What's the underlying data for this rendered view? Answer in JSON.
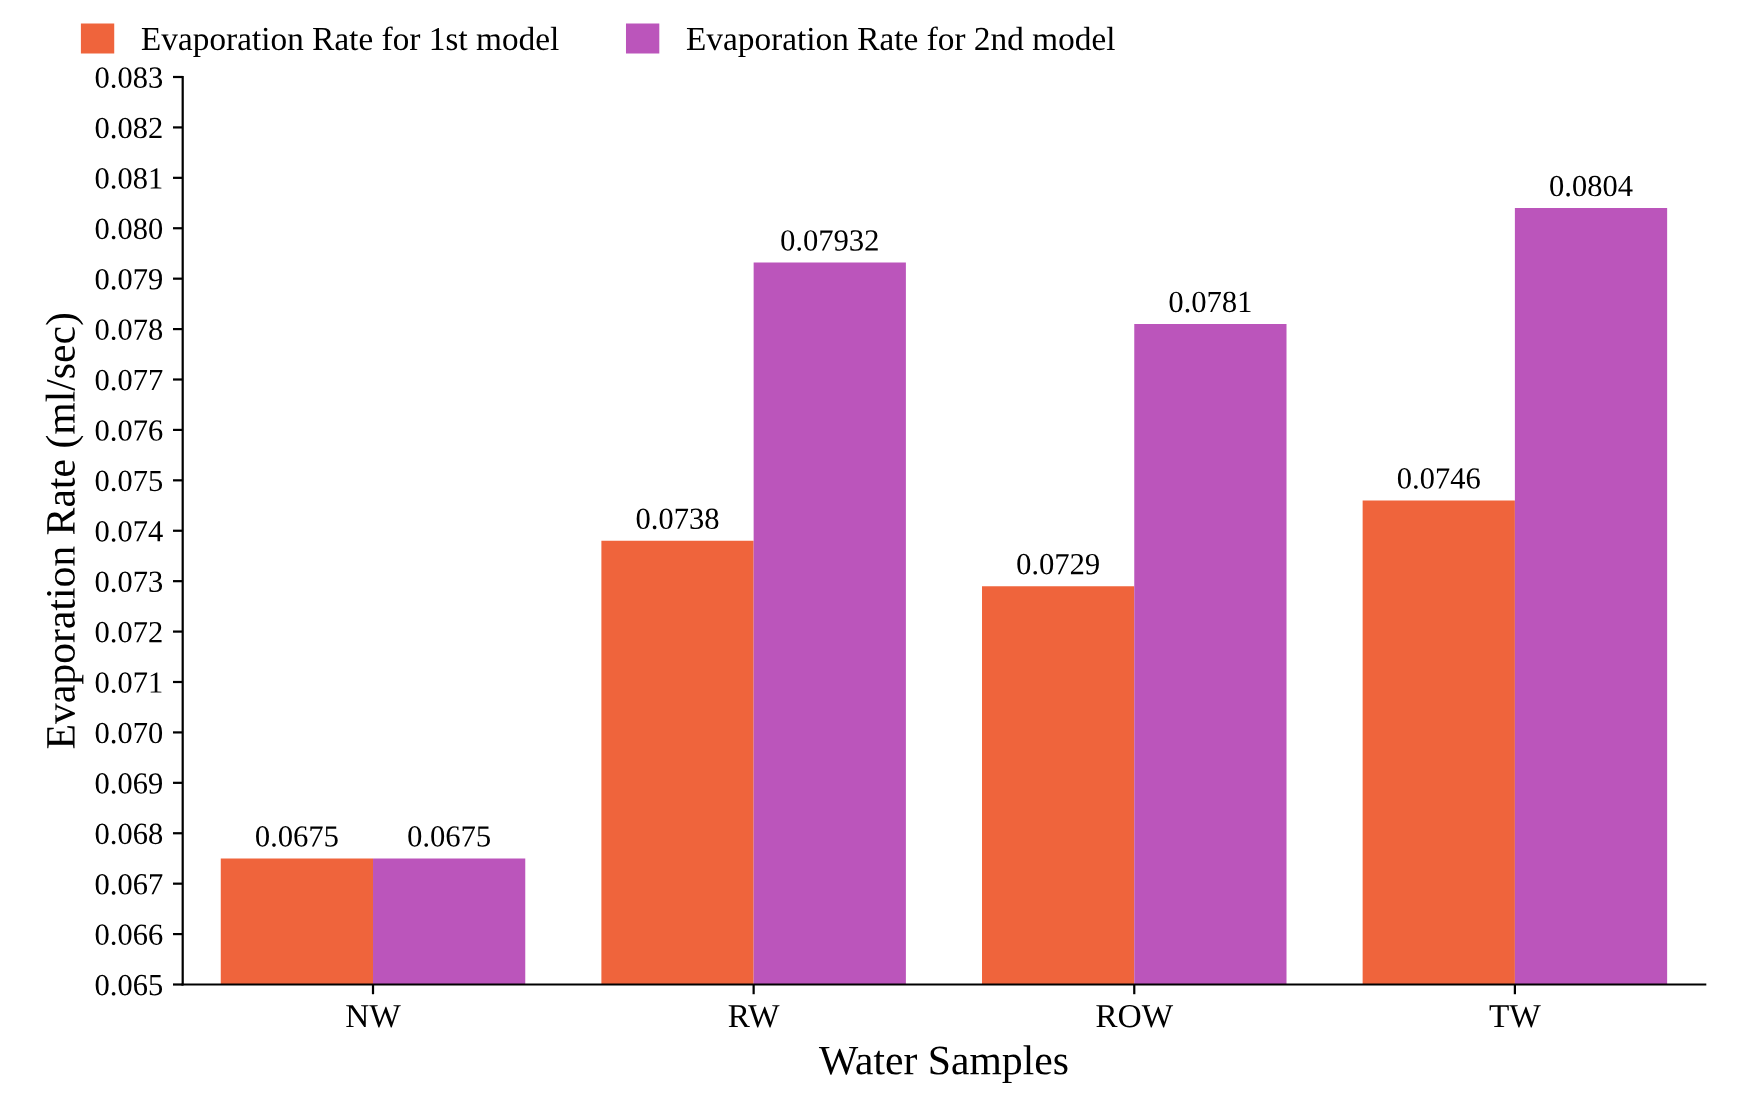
{
  "chart_data": {
    "type": "bar",
    "xlabel": "Water Samples",
    "ylabel": "Evaporation Rate (ml/sec)",
    "categories": [
      "NW",
      "RW",
      "ROW",
      "TW"
    ],
    "series": [
      {
        "name": "Evaporation Rate for 1st model",
        "color": "#ef643c",
        "values": [
          0.0675,
          0.0738,
          0.0729,
          0.0746
        ]
      },
      {
        "name": "Evaporation Rate for 2nd model",
        "color": "#bb55bb",
        "values": [
          0.0675,
          0.07932,
          0.0781,
          0.0804
        ]
      }
    ],
    "ylim": [
      0.065,
      0.083
    ],
    "yticks": [
      0.065,
      0.066,
      0.067,
      0.068,
      0.069,
      {
        "value": 0.07,
        "label": "0.070"
      },
      0.071,
      0.072,
      0.073,
      0.074,
      0.075,
      0.076,
      0.077,
      0.078,
      0.079,
      {
        "value": 0.08,
        "label": "0.080"
      },
      0.081,
      0.082,
      0.083
    ],
    "data_labels": true,
    "grid": false,
    "legend": "top left"
  }
}
